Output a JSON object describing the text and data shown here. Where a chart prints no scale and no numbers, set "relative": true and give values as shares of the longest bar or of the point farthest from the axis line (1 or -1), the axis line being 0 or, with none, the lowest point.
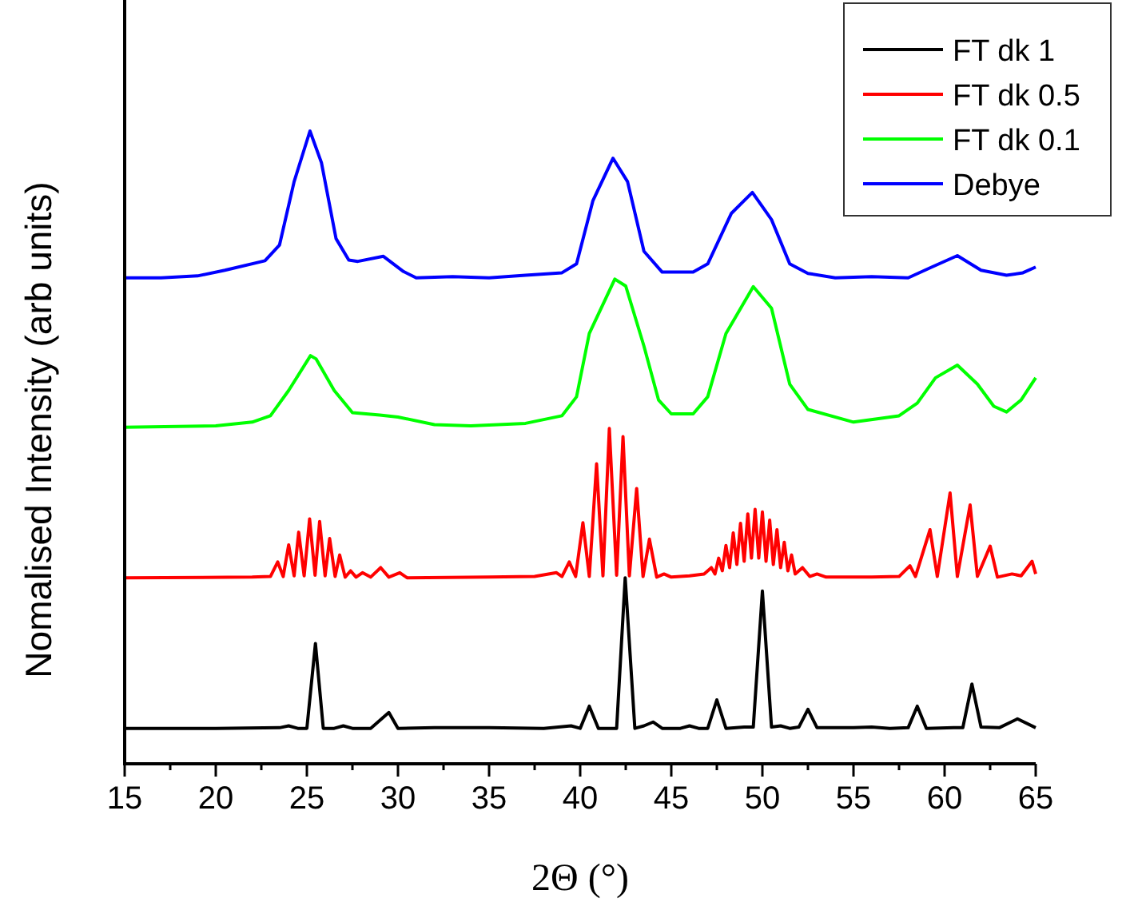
{
  "chart_data": {
    "type": "line",
    "relative": true,
    "xlabel": "2Θ (°)",
    "ylabel": "Nomalised Intensity (arb units)",
    "xlim": [
      15,
      65
    ],
    "xticks": [
      15,
      {
        "value": 17.5,
        "label": null
      },
      20,
      {
        "value": 22.5,
        "label": null
      },
      25,
      {
        "value": 27.5,
        "label": null
      },
      30,
      {
        "value": 32.5,
        "label": null
      },
      35,
      {
        "value": 37.5,
        "label": null
      },
      40,
      {
        "value": 42.5,
        "label": null
      },
      45,
      {
        "value": 47.5,
        "label": null
      },
      50,
      {
        "value": 52.5,
        "label": null
      },
      55,
      {
        "value": 57.5,
        "label": null
      },
      60,
      {
        "value": 62.5,
        "label": null
      },
      65
    ],
    "legend": "top right",
    "grid": false,
    "marker": "none",
    "line_style": "solid",
    "series": [
      {
        "name": "FT dk 1",
        "color": "#000000",
        "x": [
          15,
          20,
          23.5,
          24,
          24.5,
          25,
          25.47,
          25.9,
          26.5,
          27,
          27.5,
          28.5,
          29.5,
          30,
          32,
          35,
          38,
          39.5,
          40,
          40.5,
          41,
          41.5,
          42,
          42.47,
          43,
          43.5,
          44,
          44.5,
          45.5,
          46,
          46.5,
          47,
          47.5,
          48,
          49,
          49.5,
          50,
          50.5,
          51,
          51.5,
          52,
          52.5,
          53,
          55,
          56,
          57,
          58,
          58.5,
          59,
          60.5,
          61,
          61.5,
          62,
          63,
          64,
          65
        ],
        "values": [
          0.056,
          0.056,
          0.057,
          0.06,
          0.056,
          0.056,
          0.19,
          0.056,
          0.056,
          0.06,
          0.056,
          0.056,
          0.081,
          0.056,
          0.057,
          0.057,
          0.056,
          0.06,
          0.056,
          0.091,
          0.056,
          0.056,
          0.056,
          0.294,
          0.056,
          0.06,
          0.066,
          0.056,
          0.056,
          0.06,
          0.056,
          0.056,
          0.101,
          0.056,
          0.058,
          0.058,
          0.273,
          0.058,
          0.06,
          0.056,
          0.058,
          0.086,
          0.057,
          0.057,
          0.058,
          0.056,
          0.057,
          0.091,
          0.056,
          0.057,
          0.057,
          0.126,
          0.058,
          0.057,
          0.071,
          0.057
        ]
      },
      {
        "name": "FT dk 0.5",
        "color": "#ff0000",
        "x": [
          15,
          22,
          23,
          23.4,
          23.7,
          24,
          24.3,
          24.55,
          24.85,
          25.15,
          25.45,
          25.7,
          26,
          26.25,
          26.55,
          26.8,
          27.1,
          27.4,
          27.7,
          28.05,
          28.5,
          29.05,
          29.5,
          30.1,
          30.5,
          35,
          37.5,
          38.7,
          39,
          39.4,
          39.75,
          40.15,
          40.5,
          40.9,
          41.25,
          41.6,
          42,
          42.35,
          42.7,
          43.1,
          43.45,
          43.8,
          44.2,
          44.6,
          45,
          46,
          46.8,
          47.2,
          47.4,
          47.6,
          47.8,
          48,
          48.2,
          48.4,
          48.6,
          48.8,
          49,
          49.2,
          49.4,
          49.6,
          49.8,
          50,
          50.2,
          50.4,
          50.6,
          50.8,
          51,
          51.2,
          51.4,
          51.6,
          51.8,
          52.2,
          52.6,
          53,
          53.5,
          56,
          57.5,
          58.1,
          58.4,
          59.2,
          59.6,
          60.3,
          60.7,
          61.4,
          61.8,
          62.5,
          62.9,
          63.7,
          64.2,
          64.8,
          65
        ],
        "values": [
          0.294,
          0.295,
          0.296,
          0.319,
          0.296,
          0.346,
          0.297,
          0.366,
          0.297,
          0.387,
          0.298,
          0.383,
          0.297,
          0.356,
          0.296,
          0.33,
          0.295,
          0.305,
          0.295,
          0.302,
          0.295,
          0.31,
          0.295,
          0.302,
          0.294,
          0.295,
          0.296,
          0.302,
          0.296,
          0.319,
          0.296,
          0.381,
          0.296,
          0.474,
          0.297,
          0.53,
          0.298,
          0.517,
          0.297,
          0.435,
          0.296,
          0.355,
          0.295,
          0.3,
          0.295,
          0.297,
          0.3,
          0.31,
          0.3,
          0.325,
          0.305,
          0.345,
          0.31,
          0.365,
          0.315,
          0.38,
          0.32,
          0.395,
          0.325,
          0.402,
          0.325,
          0.398,
          0.32,
          0.385,
          0.315,
          0.37,
          0.31,
          0.35,
          0.305,
          0.33,
          0.3,
          0.31,
          0.296,
          0.3,
          0.295,
          0.295,
          0.296,
          0.313,
          0.296,
          0.37,
          0.296,
          0.428,
          0.296,
          0.409,
          0.296,
          0.344,
          0.295,
          0.3,
          0.297,
          0.32,
          0.3
        ]
      },
      {
        "name": "FT dk 0.1",
        "color": "#00ff00",
        "x": [
          15,
          20,
          22,
          23,
          24,
          25.2,
          25.5,
          26.5,
          27.5,
          29,
          30,
          32,
          34,
          37,
          39,
          39.8,
          40.5,
          41.9,
          42.5,
          43.5,
          44.3,
          45,
          46.2,
          47,
          48,
          49.5,
          50.5,
          51.5,
          52.5,
          55,
          57.5,
          58.5,
          59.5,
          60.7,
          61.8,
          62.7,
          63.4,
          64.2,
          65
        ],
        "values": [
          0.532,
          0.534,
          0.54,
          0.55,
          0.59,
          0.645,
          0.64,
          0.59,
          0.555,
          0.551,
          0.548,
          0.536,
          0.534,
          0.538,
          0.55,
          0.58,
          0.68,
          0.766,
          0.755,
          0.66,
          0.575,
          0.553,
          0.553,
          0.58,
          0.68,
          0.754,
          0.72,
          0.6,
          0.56,
          0.54,
          0.55,
          0.57,
          0.61,
          0.63,
          0.6,
          0.565,
          0.556,
          0.575,
          0.61
        ]
      },
      {
        "name": "Debye",
        "color": "#0000ff",
        "x": [
          15,
          17,
          19,
          20.5,
          22.7,
          23.5,
          24.3,
          25.17,
          25.8,
          26.6,
          27.3,
          27.8,
          29.2,
          30.3,
          31,
          33,
          35,
          37,
          39,
          39.8,
          40.7,
          41.8,
          42.6,
          43.5,
          44.5,
          46.2,
          47,
          48.3,
          49.45,
          50.5,
          51.5,
          52.5,
          54,
          56,
          58,
          59.3,
          60.7,
          62,
          63.4,
          64.3,
          65
        ],
        "values": [
          0.768,
          0.768,
          0.771,
          0.78,
          0.795,
          0.82,
          0.92,
          1,
          0.95,
          0.83,
          0.796,
          0.794,
          0.802,
          0.778,
          0.768,
          0.77,
          0.768,
          0.772,
          0.776,
          0.79,
          0.89,
          0.957,
          0.92,
          0.81,
          0.777,
          0.777,
          0.79,
          0.87,
          0.903,
          0.86,
          0.79,
          0.775,
          0.768,
          0.77,
          0.768,
          0.785,
          0.803,
          0.78,
          0.772,
          0.776,
          0.785
        ]
      }
    ]
  }
}
